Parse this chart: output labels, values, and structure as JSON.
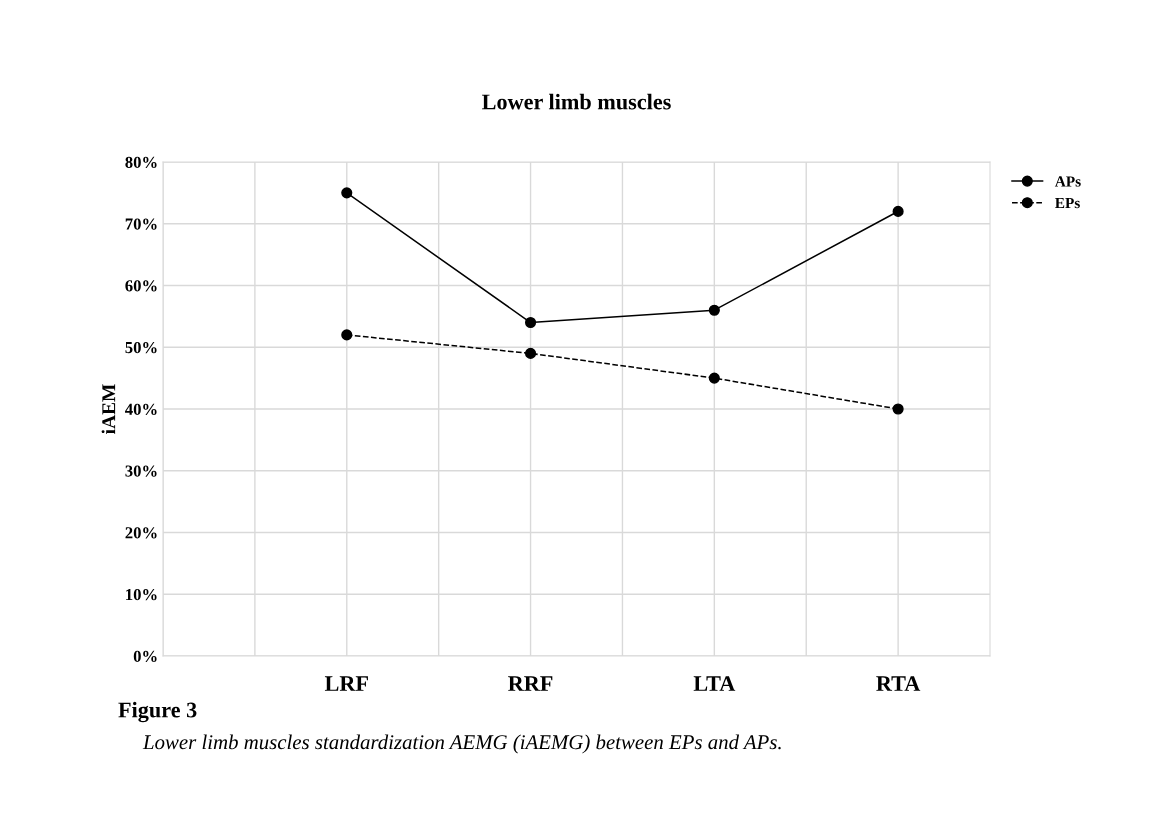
{
  "chart_data": {
    "type": "line",
    "title": "Lower limb muscles",
    "ylabel": "iAEM",
    "categories": [
      null,
      "LRF",
      "RRF",
      "LTA",
      "RTA"
    ],
    "series": [
      {
        "name": "APs",
        "color": "#000000",
        "values": [
          null,
          75,
          54,
          56,
          72
        ],
        "line_style": "solid"
      },
      {
        "name": "EPs",
        "color": "#000000",
        "values": [
          null,
          52,
          49,
          45,
          40
        ],
        "line_style": "dashed"
      }
    ],
    "ylim": [
      0,
      80
    ],
    "yticks": [
      {
        "value": 0,
        "label": "0%"
      },
      {
        "value": 10,
        "label": "10%"
      },
      {
        "value": 20,
        "label": "20%"
      },
      {
        "value": 30,
        "label": "30%"
      },
      {
        "value": 40,
        "label": "40%"
      },
      {
        "value": 50,
        "label": "50%"
      },
      {
        "value": 60,
        "label": "60%"
      },
      {
        "value": 70,
        "label": "70%"
      },
      {
        "value": 80,
        "label": "80%"
      }
    ],
    "grid": true,
    "legend": "top right",
    "marker": "circle",
    "annotations": [
      "Figure 3",
      "Lower limb muscles standardization AEMG (iAEMG) between EPs and APs."
    ]
  }
}
